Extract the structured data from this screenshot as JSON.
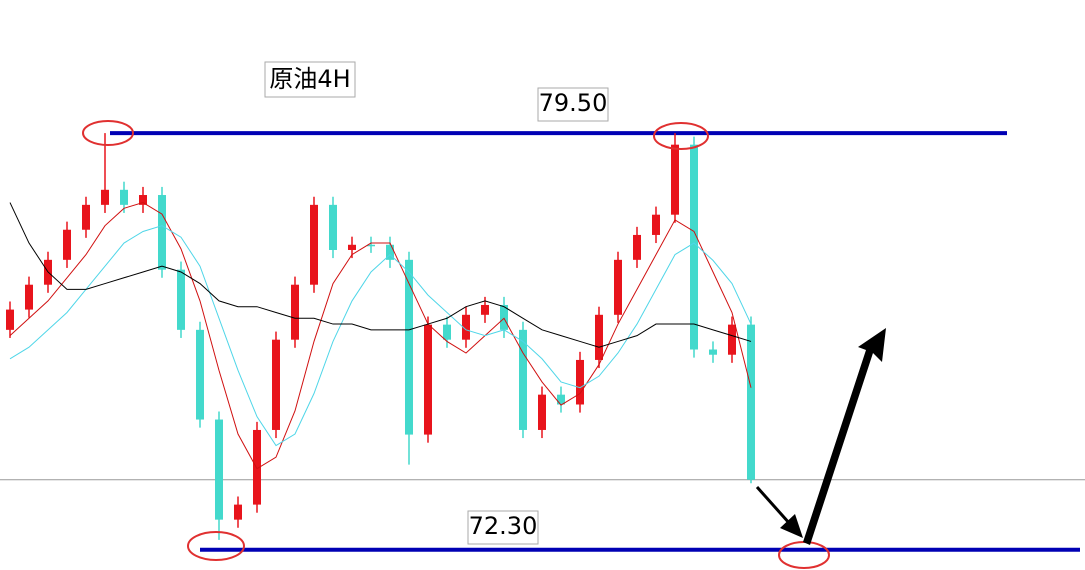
{
  "chart_data": {
    "type": "candlestick",
    "title": "原油4H",
    "ylim": [
      71.95,
      81.8
    ],
    "up_color": "#e8141c",
    "down_color": "#43d9cc",
    "candles": {
      "open": [
        76.1,
        76.45,
        76.88,
        77.31,
        77.83,
        78.26,
        78.52,
        78.26,
        78.43,
        77.14,
        76.1,
        74.55,
        72.82,
        73.08,
        74.37,
        75.93,
        76.88,
        78.26,
        77.48,
        77.57,
        77.57,
        77.31,
        74.29,
        76.19,
        75.93,
        76.36,
        76.53,
        76.1,
        74.37,
        74.98,
        74.81,
        75.58,
        76.36,
        77.31,
        77.74,
        78.09,
        79.3,
        75.76,
        75.67,
        76.19
      ],
      "high": [
        76.59,
        77.02,
        77.45,
        77.97,
        78.4,
        79.5,
        78.66,
        78.57,
        78.57,
        77.28,
        76.24,
        74.69,
        73.22,
        74.51,
        76.07,
        77.02,
        78.4,
        78.4,
        77.71,
        77.71,
        77.71,
        77.45,
        76.33,
        76.33,
        76.5,
        76.67,
        76.67,
        76.24,
        75.12,
        75.12,
        75.72,
        76.5,
        77.45,
        77.88,
        78.23,
        79.5,
        79.44,
        75.9,
        76.33,
        76.33
      ],
      "low": [
        75.96,
        76.31,
        76.74,
        77.17,
        77.69,
        78.12,
        78.12,
        78.12,
        77.0,
        75.96,
        74.41,
        72.47,
        72.68,
        72.94,
        74.23,
        75.79,
        76.74,
        77.34,
        77.34,
        77.43,
        77.17,
        73.77,
        74.15,
        75.79,
        75.79,
        76.22,
        75.96,
        74.23,
        74.23,
        74.67,
        74.67,
        75.44,
        76.22,
        77.17,
        77.6,
        77.95,
        75.62,
        75.53,
        75.53,
        73.45
      ],
      "close": [
        76.45,
        76.88,
        77.31,
        77.83,
        78.26,
        78.52,
        78.26,
        78.43,
        77.14,
        76.1,
        74.55,
        72.82,
        73.08,
        74.37,
        75.93,
        76.88,
        78.26,
        77.48,
        77.57,
        77.57,
        77.31,
        74.29,
        76.19,
        75.93,
        76.36,
        76.53,
        76.1,
        74.37,
        74.98,
        74.81,
        75.58,
        76.36,
        77.31,
        77.74,
        78.09,
        79.3,
        75.76,
        75.67,
        76.19,
        73.51
      ]
    },
    "moving_averages": [
      {
        "color": "#d01010",
        "values": [
          76.0,
          76.3,
          76.6,
          77.0,
          77.4,
          77.9,
          78.2,
          78.3,
          78.1,
          77.5,
          76.6,
          75.4,
          74.3,
          73.7,
          73.9,
          74.7,
          75.9,
          76.9,
          77.4,
          77.6,
          77.6,
          76.9,
          76.2,
          75.9,
          75.7,
          76.0,
          76.3,
          75.7,
          75.2,
          74.8,
          75.0,
          75.5,
          76.2,
          76.8,
          77.4,
          78.0,
          77.8,
          77.1,
          76.4,
          75.1
        ]
      },
      {
        "color": "#4fd6e8",
        "values": [
          75.6,
          75.8,
          76.1,
          76.4,
          76.8,
          77.2,
          77.6,
          77.8,
          77.9,
          77.7,
          77.2,
          76.3,
          75.4,
          74.6,
          74.1,
          74.3,
          75.0,
          75.9,
          76.6,
          77.1,
          77.4,
          77.1,
          76.7,
          76.4,
          76.1,
          76.0,
          76.1,
          75.9,
          75.6,
          75.2,
          75.1,
          75.3,
          75.7,
          76.2,
          76.8,
          77.4,
          77.6,
          77.3,
          76.9,
          76.2
        ]
      },
      {
        "color": "#000000",
        "values": [
          78.3,
          77.6,
          77.1,
          76.8,
          76.8,
          76.9,
          77.0,
          77.1,
          77.2,
          77.1,
          76.9,
          76.6,
          76.5,
          76.5,
          76.4,
          76.3,
          76.3,
          76.2,
          76.2,
          76.1,
          76.1,
          76.1,
          76.2,
          76.3,
          76.5,
          76.6,
          76.5,
          76.3,
          76.1,
          76.0,
          75.9,
          75.8,
          75.9,
          76.0,
          76.2,
          76.2,
          76.2,
          76.1,
          76.0,
          75.9
        ]
      }
    ],
    "levels": [
      {
        "value": 79.5,
        "label": "79.50",
        "color": "#0000b4"
      },
      {
        "value": 72.3,
        "label": "72.30",
        "color": "#0000b4"
      }
    ],
    "price_line": 73.51
  }
}
